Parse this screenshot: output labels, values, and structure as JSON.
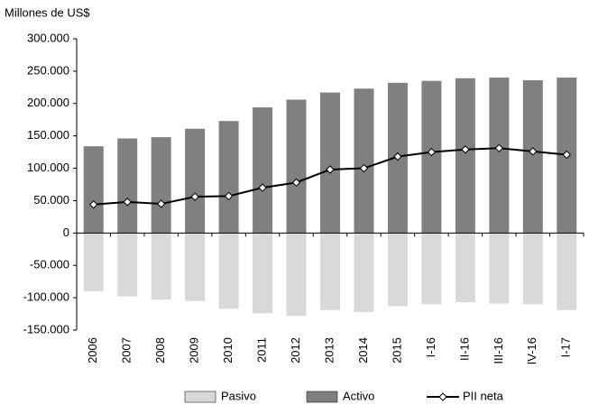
{
  "chart_data": {
    "type": "bar",
    "y_label": "Millones de US$",
    "categories": [
      "2006",
      "2007",
      "2008",
      "2009",
      "2010",
      "2011",
      "2012",
      "2013",
      "2014",
      "2015",
      "I-16",
      "II-16",
      "III-16",
      "IV-16",
      "I-17"
    ],
    "series": [
      {
        "name": "Pasivo",
        "type": "bar",
        "color": "#d9d9d9",
        "values": [
          -90000,
          -98000,
          -103000,
          -105000,
          -117000,
          -124000,
          -128000,
          -119000,
          -122000,
          -113000,
          -110000,
          -107000,
          -109000,
          -110000,
          -119000
        ]
      },
      {
        "name": "Activo",
        "type": "bar",
        "color": "#808080",
        "values": [
          134000,
          146000,
          148000,
          161000,
          173000,
          194000,
          206000,
          217000,
          223000,
          232000,
          235000,
          239000,
          240000,
          236000,
          240000
        ]
      },
      {
        "name": "PII neta",
        "type": "line",
        "color": "#000000",
        "values": [
          44000,
          48000,
          45000,
          56000,
          57000,
          70000,
          78000,
          98000,
          100000,
          118000,
          125000,
          129000,
          131000,
          126000,
          121000
        ]
      }
    ],
    "ylim": [
      -150000,
      300000
    ],
    "yticks": [
      {
        "value": -150000,
        "label": "-150.000"
      },
      {
        "value": -100000,
        "label": "-100.000"
      },
      {
        "value": -50000,
        "label": "-50.000"
      },
      0,
      {
        "value": 50000,
        "label": "50.000"
      },
      {
        "value": 100000,
        "label": "100.000"
      },
      {
        "value": 150000,
        "label": "150.000"
      },
      {
        "value": 200000,
        "label": "200.000"
      },
      {
        "value": 250000,
        "label": "250.000"
      },
      {
        "value": 300000,
        "label": "300.000"
      }
    ],
    "legend": "bottom"
  }
}
